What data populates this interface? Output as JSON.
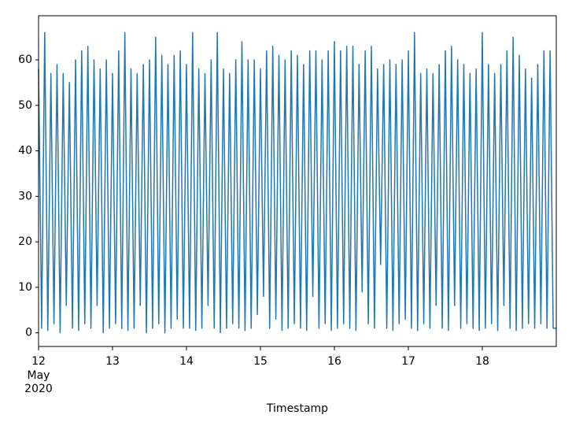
{
  "chart_data": {
    "type": "line",
    "xlabel": "Timestamp",
    "x": [
      "2020-05-12T00:00",
      "2020-05-12T01:00",
      "2020-05-12T02:00",
      "2020-05-12T03:00",
      "2020-05-12T04:00",
      "2020-05-12T05:00",
      "2020-05-12T06:00",
      "2020-05-12T07:00",
      "2020-05-12T08:00",
      "2020-05-12T09:00",
      "2020-05-12T10:00",
      "2020-05-12T11:00",
      "2020-05-12T12:00",
      "2020-05-12T13:00",
      "2020-05-12T14:00",
      "2020-05-12T15:00",
      "2020-05-12T16:00",
      "2020-05-12T17:00",
      "2020-05-12T18:00",
      "2020-05-12T19:00",
      "2020-05-12T20:00",
      "2020-05-12T21:00",
      "2020-05-12T22:00",
      "2020-05-12T23:00",
      "2020-05-13T00:00",
      "2020-05-13T01:00",
      "2020-05-13T02:00",
      "2020-05-13T03:00",
      "2020-05-13T04:00",
      "2020-05-13T05:00",
      "2020-05-13T06:00",
      "2020-05-13T07:00",
      "2020-05-13T08:00",
      "2020-05-13T09:00",
      "2020-05-13T10:00",
      "2020-05-13T11:00",
      "2020-05-13T12:00",
      "2020-05-13T13:00",
      "2020-05-13T14:00",
      "2020-05-13T15:00",
      "2020-05-13T16:00",
      "2020-05-13T17:00",
      "2020-05-13T18:00",
      "2020-05-13T19:00",
      "2020-05-13T20:00",
      "2020-05-13T21:00",
      "2020-05-13T22:00",
      "2020-05-13T23:00",
      "2020-05-14T00:00",
      "2020-05-14T01:00",
      "2020-05-14T02:00",
      "2020-05-14T03:00",
      "2020-05-14T04:00",
      "2020-05-14T05:00",
      "2020-05-14T06:00",
      "2020-05-14T07:00",
      "2020-05-14T08:00",
      "2020-05-14T09:00",
      "2020-05-14T10:00",
      "2020-05-14T11:00",
      "2020-05-14T12:00",
      "2020-05-14T13:00",
      "2020-05-14T14:00",
      "2020-05-14T15:00",
      "2020-05-14T16:00",
      "2020-05-14T17:00",
      "2020-05-14T18:00",
      "2020-05-14T19:00",
      "2020-05-14T20:00",
      "2020-05-14T21:00",
      "2020-05-14T22:00",
      "2020-05-14T23:00",
      "2020-05-15T00:00",
      "2020-05-15T01:00",
      "2020-05-15T02:00",
      "2020-05-15T03:00",
      "2020-05-15T04:00",
      "2020-05-15T05:00",
      "2020-05-15T06:00",
      "2020-05-15T07:00",
      "2020-05-15T08:00",
      "2020-05-15T09:00",
      "2020-05-15T10:00",
      "2020-05-15T11:00",
      "2020-05-15T12:00",
      "2020-05-15T13:00",
      "2020-05-15T14:00",
      "2020-05-15T15:00",
      "2020-05-15T16:00",
      "2020-05-15T17:00",
      "2020-05-15T18:00",
      "2020-05-15T19:00",
      "2020-05-15T20:00",
      "2020-05-15T21:00",
      "2020-05-15T22:00",
      "2020-05-15T23:00",
      "2020-05-16T00:00",
      "2020-05-16T01:00",
      "2020-05-16T02:00",
      "2020-05-16T03:00",
      "2020-05-16T04:00",
      "2020-05-16T05:00",
      "2020-05-16T06:00",
      "2020-05-16T07:00",
      "2020-05-16T08:00",
      "2020-05-16T09:00",
      "2020-05-16T10:00",
      "2020-05-16T11:00",
      "2020-05-16T12:00",
      "2020-05-16T13:00",
      "2020-05-16T14:00",
      "2020-05-16T15:00",
      "2020-05-16T16:00",
      "2020-05-16T17:00",
      "2020-05-16T18:00",
      "2020-05-16T19:00",
      "2020-05-16T20:00",
      "2020-05-16T21:00",
      "2020-05-16T22:00",
      "2020-05-16T23:00",
      "2020-05-17T00:00",
      "2020-05-17T01:00",
      "2020-05-17T02:00",
      "2020-05-17T03:00",
      "2020-05-17T04:00",
      "2020-05-17T05:00",
      "2020-05-17T06:00",
      "2020-05-17T07:00",
      "2020-05-17T08:00",
      "2020-05-17T09:00",
      "2020-05-17T10:00",
      "2020-05-17T11:00",
      "2020-05-17T12:00",
      "2020-05-17T13:00",
      "2020-05-17T14:00",
      "2020-05-17T15:00",
      "2020-05-17T16:00",
      "2020-05-17T17:00",
      "2020-05-17T18:00",
      "2020-05-17T19:00",
      "2020-05-17T20:00",
      "2020-05-17T21:00",
      "2020-05-17T22:00",
      "2020-05-17T23:00",
      "2020-05-18T00:00",
      "2020-05-18T01:00",
      "2020-05-18T02:00",
      "2020-05-18T03:00",
      "2020-05-18T04:00",
      "2020-05-18T05:00",
      "2020-05-18T06:00",
      "2020-05-18T07:00",
      "2020-05-18T08:00",
      "2020-05-18T09:00",
      "2020-05-18T10:00",
      "2020-05-18T11:00",
      "2020-05-18T12:00",
      "2020-05-18T13:00",
      "2020-05-18T14:00",
      "2020-05-18T15:00",
      "2020-05-18T16:00",
      "2020-05-18T17:00",
      "2020-05-18T18:00",
      "2020-05-18T19:00",
      "2020-05-18T20:00",
      "2020-05-18T21:00",
      "2020-05-18T22:00",
      "2020-05-18T23:00",
      "2020-05-19T00:00"
    ],
    "series": [
      {
        "color": "#1f77b4",
        "values": [
          58,
          1,
          66,
          0.5,
          57,
          2,
          59,
          0,
          57,
          6,
          55,
          1,
          60,
          0.5,
          62,
          2,
          63,
          1,
          60,
          6,
          58,
          0,
          60,
          1,
          57,
          2,
          62,
          1,
          66,
          0.5,
          58,
          1,
          57,
          6,
          59,
          0,
          60,
          1,
          65,
          2,
          61,
          0,
          59,
          1,
          61,
          3,
          62,
          1,
          59,
          1,
          66,
          0.5,
          58,
          1,
          57,
          6,
          60,
          1,
          66,
          0,
          58,
          1,
          57,
          2,
          60,
          1,
          64,
          0.5,
          60,
          1,
          60,
          4,
          58,
          8,
          62,
          1,
          63,
          3,
          61,
          0.5,
          60,
          1,
          62,
          2,
          61,
          1,
          59,
          0.5,
          62,
          8,
          62,
          1,
          60,
          2,
          62,
          0.5,
          64,
          1,
          62,
          2,
          63,
          1,
          63,
          0.5,
          59,
          9,
          62,
          2,
          63,
          1,
          58,
          15,
          59,
          1,
          60,
          0.5,
          59,
          2,
          60,
          3,
          62,
          1,
          66,
          0.5,
          57,
          2,
          58,
          1,
          57,
          6,
          59,
          1,
          62,
          0.5,
          63,
          6,
          60,
          1,
          59,
          2,
          57,
          1,
          58,
          0.5,
          66,
          1,
          59,
          2,
          57,
          0.5,
          59,
          6,
          62,
          1,
          65,
          0.5,
          61,
          1,
          58,
          2,
          56,
          1,
          59,
          2,
          62,
          1,
          62,
          1,
          1
        ]
      }
    ],
    "xlim": [
      "2020-05-12T00:00",
      "2020-05-19T00:00"
    ],
    "xticks": [
      {
        "value": "2020-05-12T00:00",
        "label": "12"
      },
      {
        "value": "2020-05-13T00:00",
        "label": "13"
      },
      {
        "value": "2020-05-14T00:00",
        "label": "14"
      },
      {
        "value": "2020-05-15T00:00",
        "label": "15"
      },
      {
        "value": "2020-05-16T00:00",
        "label": "16"
      },
      {
        "value": "2020-05-17T00:00",
        "label": "17"
      },
      {
        "value": "2020-05-18T00:00",
        "label": "18"
      }
    ],
    "xtick_sublabels": [
      "May",
      "2020"
    ],
    "ylim": [
      -3,
      69.7
    ],
    "yticks": [
      0,
      10,
      20,
      30,
      40,
      50,
      60
    ]
  }
}
